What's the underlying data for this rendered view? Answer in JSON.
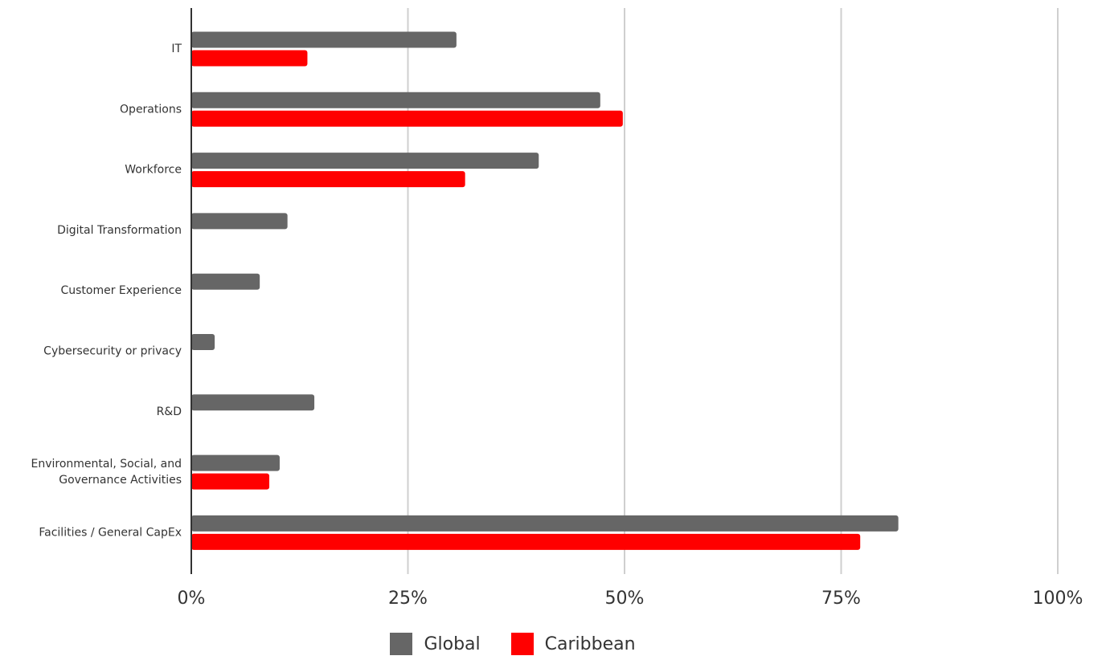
{
  "chart_data": {
    "type": "bar",
    "orientation": "horizontal",
    "categories": [
      "IT",
      "Operations",
      "Workforce",
      "Digital Transformation",
      "Customer Experience",
      "Cybersecurity or privacy",
      "R&D",
      "Environmental, Social, and Governance Activities",
      "Facilities / General CapEx"
    ],
    "category_lines": [
      [
        "IT"
      ],
      [
        "Operations"
      ],
      [
        "Workforce"
      ],
      [
        "Digital Transformation"
      ],
      [
        "Customer Experience"
      ],
      [
        "Cybersecurity or privacy"
      ],
      [
        "R&D"
      ],
      [
        "Environmental, Social, and",
        "Governance Activities"
      ],
      [
        "Facilities / General CapEx"
      ]
    ],
    "series": [
      {
        "name": "Global",
        "color": "#666666",
        "values": [
          30.6,
          47.2,
          40.1,
          11.1,
          7.9,
          2.7,
          14.2,
          10.2,
          81.6
        ]
      },
      {
        "name": "Caribbean",
        "color": "#ff0000",
        "values": [
          13.4,
          49.8,
          31.6,
          null,
          null,
          null,
          null,
          9.0,
          77.2
        ]
      }
    ],
    "xlim": [
      0,
      100
    ],
    "x_ticks": [
      "0%",
      "25%",
      "50%",
      "75%",
      "100%"
    ],
    "x_tick_values": [
      0,
      25,
      50,
      75,
      100
    ],
    "grid": true,
    "legend_position": "bottom-center",
    "title": "",
    "xlabel": "",
    "ylabel": ""
  }
}
